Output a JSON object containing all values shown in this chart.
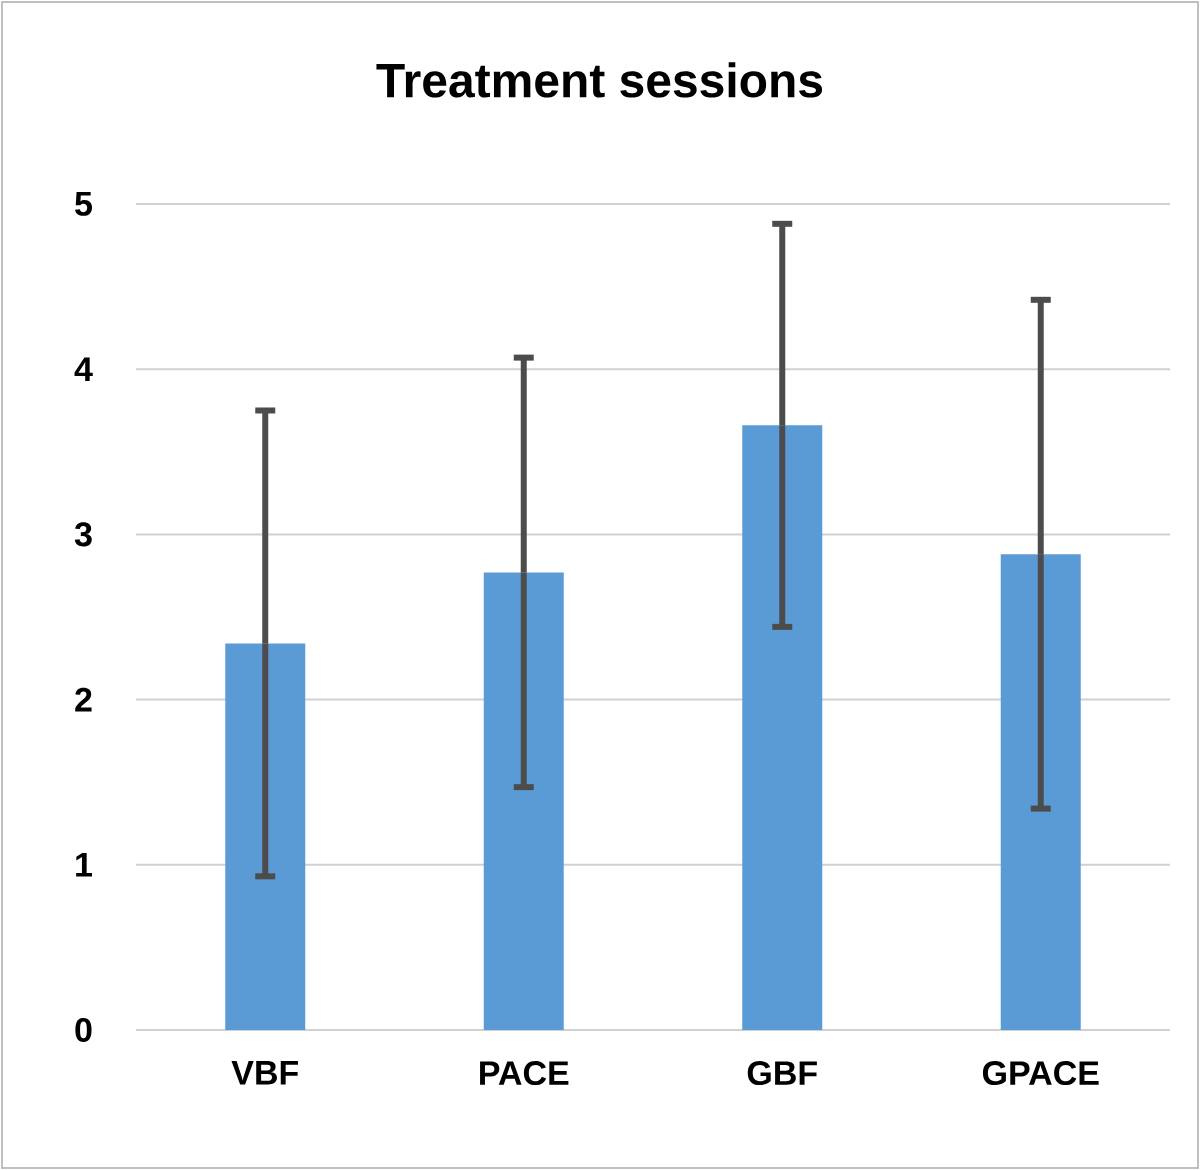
{
  "chart_data": {
    "type": "bar",
    "title": "Treatment sessions",
    "categories": [
      "VBF",
      "PACE",
      "GBF",
      "GPACE"
    ],
    "values": [
      2.34,
      2.77,
      3.66,
      2.88
    ],
    "errors": [
      1.41,
      1.3,
      1.22,
      1.54
    ],
    "color": "#5b9bd5",
    "ylim": [
      0,
      5
    ],
    "yticks": [
      0,
      1,
      2,
      3,
      4,
      5
    ],
    "grid": "y"
  }
}
